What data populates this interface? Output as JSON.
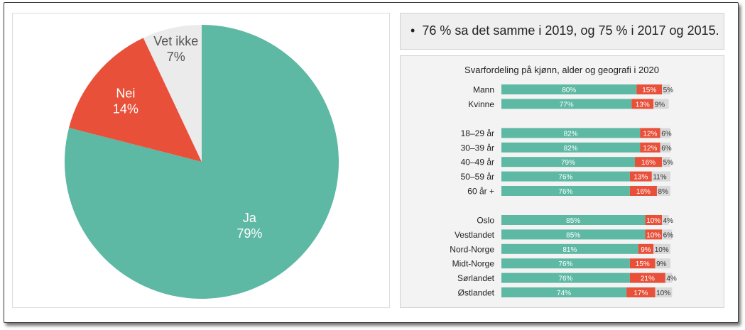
{
  "note": {
    "bullet": "•",
    "text": "76 % sa det samme i 2019, og 75 % i 2017 og 2015."
  },
  "colors": {
    "ja": "#5db8a4",
    "nei": "#e8503a",
    "vet_ikke": "#ebebeb"
  },
  "chart_data": [
    {
      "type": "pie",
      "title": "",
      "slices": [
        {
          "label": "Ja",
          "value": 79,
          "value_label": "79%",
          "color": "#5db8a4"
        },
        {
          "label": "Nei",
          "value": 14,
          "value_label": "14%",
          "color": "#e8503a"
        },
        {
          "label": "Vet ikke",
          "value": 7,
          "value_label": "7%",
          "color": "#ebebeb"
        }
      ],
      "start": "12 o'clock, clockwise"
    },
    {
      "type": "bar",
      "orientation": "horizontal",
      "stacked": true,
      "title": "Svarfordeling på kjønn, alder og geografi i 2020",
      "xlim": [
        0,
        100
      ],
      "groups": [
        {
          "categories": [
            "Mann",
            "Kvinne"
          ]
        },
        {
          "categories": [
            "18–29 år",
            "30–39 år",
            "40–49 år",
            "50–59 år",
            "60 år +"
          ]
        },
        {
          "categories": [
            "Oslo",
            "Vestlandet",
            "Nord-Norge",
            "Midt-Norge",
            "Sørlandet",
            "Østlandet"
          ]
        }
      ],
      "categories": [
        "Mann",
        "Kvinne",
        "18–29 år",
        "30–39 år",
        "40–49 år",
        "50–59 år",
        "60 år +",
        "Oslo",
        "Vestlandet",
        "Nord-Norge",
        "Midt-Norge",
        "Sørlandet",
        "Østlandet"
      ],
      "series": [
        {
          "key": "ja",
          "color": "#5db8a4",
          "values": [
            80,
            77,
            82,
            82,
            79,
            76,
            76,
            85,
            85,
            81,
            76,
            76,
            74
          ]
        },
        {
          "key": "nei",
          "color": "#e8503a",
          "values": [
            15,
            13,
            12,
            12,
            16,
            13,
            16,
            10,
            10,
            9,
            15,
            21,
            17
          ]
        },
        {
          "key": "vet_ikke",
          "color": "#d9d9d9",
          "values": [
            5,
            9,
            6,
            6,
            5,
            11,
            8,
            4,
            6,
            10,
            9,
            4,
            10
          ]
        }
      ]
    }
  ]
}
